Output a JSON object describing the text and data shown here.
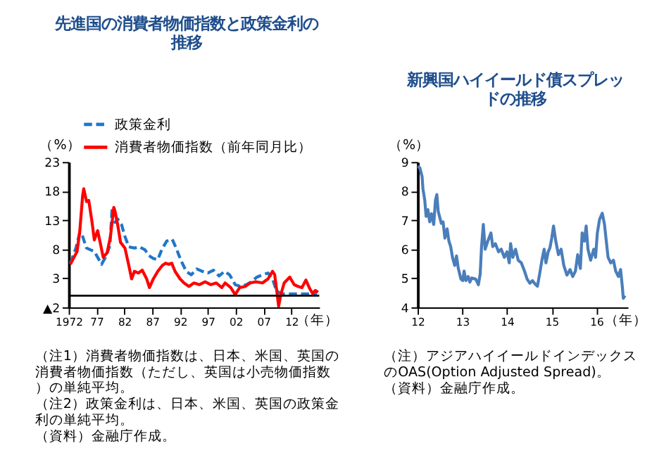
{
  "chart_data": [
    {
      "type": "line",
      "title": "先進国の消費者物価指数と政策金利の推移",
      "ylabel": "（%）",
      "xlabel": "（年）",
      "xlim": [
        1972,
        2017
      ],
      "xticks": [
        1972,
        {
          "value": 1977,
          "label": "77"
        },
        {
          "value": 1982,
          "label": "82"
        },
        {
          "value": 1987,
          "label": "87"
        },
        {
          "value": 1992,
          "label": "92"
        },
        {
          "value": 1997,
          "label": "97"
        },
        {
          "value": 2002,
          "label": "02"
        },
        {
          "value": 2007,
          "label": "07"
        },
        {
          "value": 2012,
          "label": "12"
        }
      ],
      "ylim": [
        -2,
        23
      ],
      "yticks": [
        {
          "value": -2,
          "label": "▲2"
        },
        3,
        8,
        13,
        18,
        23
      ],
      "grid": false,
      "legend": "top",
      "ref_lines": [
        {
          "axis": "y",
          "value": 0
        }
      ],
      "series": [
        {
          "name": "政策金利",
          "color": "#1f77c8",
          "line_style": "dashed",
          "x": [
            1972.3,
            1973.3,
            1974,
            1974.5,
            1975.2,
            1975.9,
            1976.6,
            1977.2,
            1977.9,
            1978.6,
            1979.4,
            1979.8,
            1980.3,
            1980.8,
            1981.5,
            1982.1,
            1982.8,
            1983.8,
            1984.7,
            1985.7,
            1986.4,
            1987.2,
            1988,
            1988.7,
            1989.6,
            1990.6,
            1991.3,
            1992.1,
            1993.1,
            1994,
            1995,
            1996,
            1997,
            1998,
            1999,
            2000,
            2000.9,
            2001.9,
            2002.9,
            2003.9,
            2004.8,
            2005.8,
            2006.8,
            2007.8,
            2008.6,
            2009.3,
            2010.2,
            2011.7,
            2013.7,
            2015.6,
            2016.6
          ],
          "values": [
            5.6,
            8.2,
            10.9,
            10.2,
            8.2,
            7.9,
            7.6,
            6.6,
            5.4,
            6.6,
            8.6,
            15.2,
            12.6,
            13.2,
            12.2,
            10.2,
            8.4,
            8.2,
            8.4,
            7.9,
            6.9,
            6.4,
            6.2,
            7.9,
            9.4,
            9.7,
            8.2,
            6.2,
            4.2,
            3.6,
            4.6,
            4.2,
            3.9,
            4.4,
            3.4,
            4.2,
            3.6,
            1.9,
            1.6,
            1.9,
            2.4,
            3.2,
            3.6,
            3.9,
            2.9,
            0.9,
            0.3,
            0.3,
            0.3,
            0.3,
            0.4
          ]
        },
        {
          "name": "消費者物価指数（前年同月比）",
          "color": "#ff0000",
          "line_style": "solid",
          "x": [
            1972.3,
            1973.5,
            1974,
            1974.5,
            1974.7,
            1975.2,
            1975.6,
            1976.2,
            1976.6,
            1977.2,
            1977.6,
            1978.2,
            1978.9,
            1979.5,
            1980.1,
            1980.3,
            1980.8,
            1981.3,
            1982.1,
            1982.8,
            1983.3,
            1983.8,
            1984.5,
            1985.2,
            1986,
            1986.5,
            1987.2,
            1988,
            1988.8,
            1989.4,
            1990,
            1990.5,
            1991.1,
            1992,
            1992.7,
            1993.6,
            1994.5,
            1995.5,
            1996.5,
            1997.5,
            1998.5,
            1999.5,
            2000.1,
            2001.1,
            2001.9,
            2002.7,
            2003.7,
            2004.6,
            2005.6,
            2006.8,
            2007.8,
            2008.6,
            2009,
            2009.4,
            2009.7,
            2010.1,
            2010.7,
            2011.7,
            2012.5,
            2013.2,
            2013.9,
            2014.6,
            2015.3,
            2015.8,
            2016.3,
            2016.8
          ],
          "values": [
            5.4,
            7.6,
            11.2,
            17.2,
            18.4,
            16.2,
            16.4,
            12.6,
            9.6,
            11.2,
            9.4,
            6.6,
            7.4,
            10.2,
            15.2,
            14.6,
            12.2,
            9.2,
            8.2,
            5.2,
            2.9,
            4.2,
            3.9,
            4.4,
            2.9,
            1.4,
            2.9,
            4.2,
            5.2,
            5.6,
            5.4,
            5.6,
            4.2,
            2.9,
            2.2,
            1.6,
            2.2,
            1.9,
            2.4,
            1.9,
            2.2,
            1.4,
            2.2,
            1.4,
            0.2,
            1.4,
            1.6,
            2.2,
            2.4,
            2.2,
            2.9,
            4.2,
            3.6,
            0.6,
            -1.8,
            0.2,
            2.2,
            3.2,
            1.9,
            1.6,
            1.4,
            2.7,
            1.2,
            0.4,
            0.9,
            0.6
          ]
        }
      ],
      "annotations": [
        "（注1）消費者物価指数は、日本、米国、英国の消費者物価指数（ただし、英国は小売物価指数）の単純平均。",
        "（注2）政策金利は、日本、米国、英国の政策金利の単純平均。",
        "（資料）金融庁作成。"
      ]
    },
    {
      "type": "line",
      "title": "新興国ハイイールド債スプレッドの推移",
      "ylabel": "（%）",
      "xlabel": "（年）",
      "xlim": [
        2012,
        2016.7
      ],
      "xticks": [
        {
          "value": 2012,
          "label": "12"
        },
        {
          "value": 2013,
          "label": "13"
        },
        {
          "value": 2014,
          "label": "14"
        },
        {
          "value": 2015,
          "label": "15"
        },
        {
          "value": 2016,
          "label": "16"
        }
      ],
      "ylim": [
        4,
        9
      ],
      "yticks": [
        4,
        5,
        6,
        7,
        8,
        9
      ],
      "grid": false,
      "series": [
        {
          "color": "#4a7ebb",
          "line_style": "solid",
          "x": [
            2012.0,
            2012.05,
            2012.1,
            2012.12,
            2012.16,
            2012.19,
            2012.23,
            2012.27,
            2012.31,
            2012.36,
            2012.4,
            2012.43,
            2012.46,
            2012.53,
            2012.57,
            2012.61,
            2012.66,
            2012.7,
            2012.74,
            2012.78,
            2012.83,
            2012.87,
            2012.91,
            2012.97,
            2013.01,
            2013.04,
            2013.08,
            2013.13,
            2013.17,
            2013.21,
            2013.3,
            2013.36,
            2013.4,
            2013.43,
            2013.47,
            2013.51,
            2013.57,
            2013.64,
            2013.68,
            2013.74,
            2013.81,
            2013.87,
            2013.94,
            2014.0,
            2014.05,
            2014.08,
            2014.13,
            2014.19,
            2014.25,
            2014.32,
            2014.39,
            2014.45,
            2014.51,
            2014.57,
            2014.64,
            2014.68,
            2014.73,
            2014.78,
            2014.83,
            2014.87,
            2014.92,
            2014.96,
            2015.0,
            2015.04,
            2015.09,
            2015.15,
            2015.21,
            2015.27,
            2015.34,
            2015.41,
            2015.47,
            2015.53,
            2015.58,
            2015.64,
            2015.68,
            2015.73,
            2015.77,
            2015.81,
            2015.87,
            2015.94,
            2015.98,
            2016.02,
            2016.07,
            2016.13,
            2016.18,
            2016.22,
            2016.26,
            2016.32,
            2016.38,
            2016.43,
            2016.49,
            2016.54,
            2016.58,
            2016.6,
            2016.64
          ],
          "values": [
            8.85,
            8.8,
            8.5,
            8.07,
            7.69,
            7.13,
            7.36,
            6.94,
            7.22,
            6.85,
            7.69,
            7.88,
            7.31,
            6.89,
            6.94,
            6.38,
            6.7,
            6.28,
            6.09,
            5.72,
            5.44,
            5.77,
            5.34,
            4.97,
            4.92,
            5.25,
            4.92,
            5.06,
            4.87,
            5.01,
            4.97,
            4.78,
            5.15,
            6.09,
            6.85,
            6.0,
            6.28,
            6.56,
            6.09,
            6.19,
            5.91,
            6.0,
            5.72,
            5.91,
            5.53,
            6.19,
            5.72,
            6.0,
            5.62,
            5.53,
            5.25,
            4.97,
            4.83,
            4.92,
            4.78,
            4.73,
            5.15,
            5.62,
            6.0,
            5.53,
            5.91,
            6.05,
            6.38,
            6.8,
            6.28,
            5.81,
            6.0,
            5.44,
            5.11,
            5.3,
            5.06,
            5.25,
            5.81,
            5.34,
            6.56,
            6.28,
            6.8,
            6.0,
            5.62,
            6.0,
            5.72,
            6.56,
            7.03,
            7.24,
            6.85,
            6.28,
            5.72,
            5.53,
            5.62,
            5.25,
            5.06,
            5.3,
            4.69,
            4.31,
            4.4
          ]
        }
      ],
      "annotations": [
        "（注）アジアハイイールドインデックスのOAS(Option Adjusted Spread)。",
        "（資料）金融庁作成。"
      ]
    }
  ]
}
